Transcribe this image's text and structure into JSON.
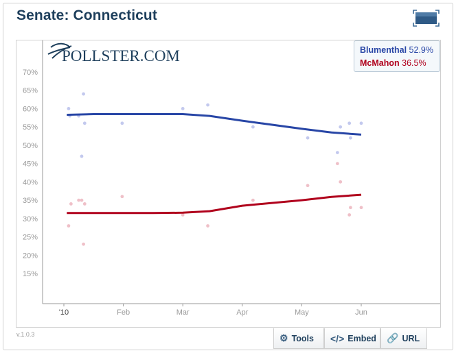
{
  "title": "Senate: Connecticut",
  "logo_text": "POLLSTER.COM",
  "version": "v.1.0.3",
  "legend": [
    {
      "name": "Blumenthal",
      "value": "52.9%",
      "color": "#2846a6"
    },
    {
      "name": "McMahon",
      "value": "36.5%",
      "color": "#b0001c"
    }
  ],
  "toolbar": {
    "tools_label": "Tools",
    "embed_label": "Embed",
    "url_label": "URL",
    "tools_icon": "gear-icon",
    "embed_icon": "code-icon",
    "url_icon": "link-icon"
  },
  "chart_data": {
    "type": "line",
    "x_ticks": [
      "'10",
      "Feb",
      "Mar",
      "Apr",
      "May",
      "Jun"
    ],
    "y_ticks": [
      "15%",
      "20%",
      "25%",
      "30%",
      "35%",
      "40%",
      "45%",
      "50%",
      "55%",
      "60%",
      "65%",
      "70%"
    ],
    "ylim": [
      15,
      70
    ],
    "grid": false,
    "legend_position": "top-right",
    "series": [
      {
        "name": "Blumenthal",
        "color": "#2846a6",
        "point_color": "#c3c9ee",
        "trend": [
          [
            0.05,
            58.3
          ],
          [
            0.5,
            58.5
          ],
          [
            2.0,
            58.5
          ],
          [
            2.45,
            58.0
          ],
          [
            3.0,
            56.7
          ],
          [
            4.0,
            54.5
          ],
          [
            4.5,
            53.5
          ],
          [
            5.0,
            52.9
          ]
        ],
        "polls": [
          [
            0.08,
            60
          ],
          [
            0.1,
            58
          ],
          [
            0.25,
            58
          ],
          [
            0.3,
            47
          ],
          [
            0.33,
            64
          ],
          [
            0.35,
            56
          ],
          [
            0.98,
            56
          ],
          [
            2.0,
            60
          ],
          [
            2.42,
            61
          ],
          [
            3.18,
            55
          ],
          [
            4.1,
            52
          ],
          [
            4.6,
            48
          ],
          [
            4.65,
            55
          ],
          [
            4.8,
            56
          ],
          [
            4.82,
            52
          ],
          [
            5.0,
            56
          ]
        ]
      },
      {
        "name": "McMahon",
        "color": "#b0001c",
        "point_color": "#efc0c8",
        "trend": [
          [
            0.05,
            31.5
          ],
          [
            1.5,
            31.5
          ],
          [
            2.0,
            31.6
          ],
          [
            2.45,
            32.0
          ],
          [
            3.0,
            33.5
          ],
          [
            4.0,
            35.0
          ],
          [
            4.5,
            35.9
          ],
          [
            5.0,
            36.5
          ]
        ],
        "polls": [
          [
            0.08,
            28
          ],
          [
            0.12,
            34
          ],
          [
            0.25,
            35
          ],
          [
            0.3,
            35
          ],
          [
            0.33,
            23
          ],
          [
            0.35,
            34
          ],
          [
            0.98,
            36
          ],
          [
            2.0,
            31
          ],
          [
            2.42,
            28
          ],
          [
            3.18,
            35
          ],
          [
            4.1,
            39
          ],
          [
            4.6,
            45
          ],
          [
            4.65,
            40
          ],
          [
            4.8,
            31
          ],
          [
            4.82,
            33
          ],
          [
            5.0,
            33
          ]
        ]
      }
    ]
  }
}
